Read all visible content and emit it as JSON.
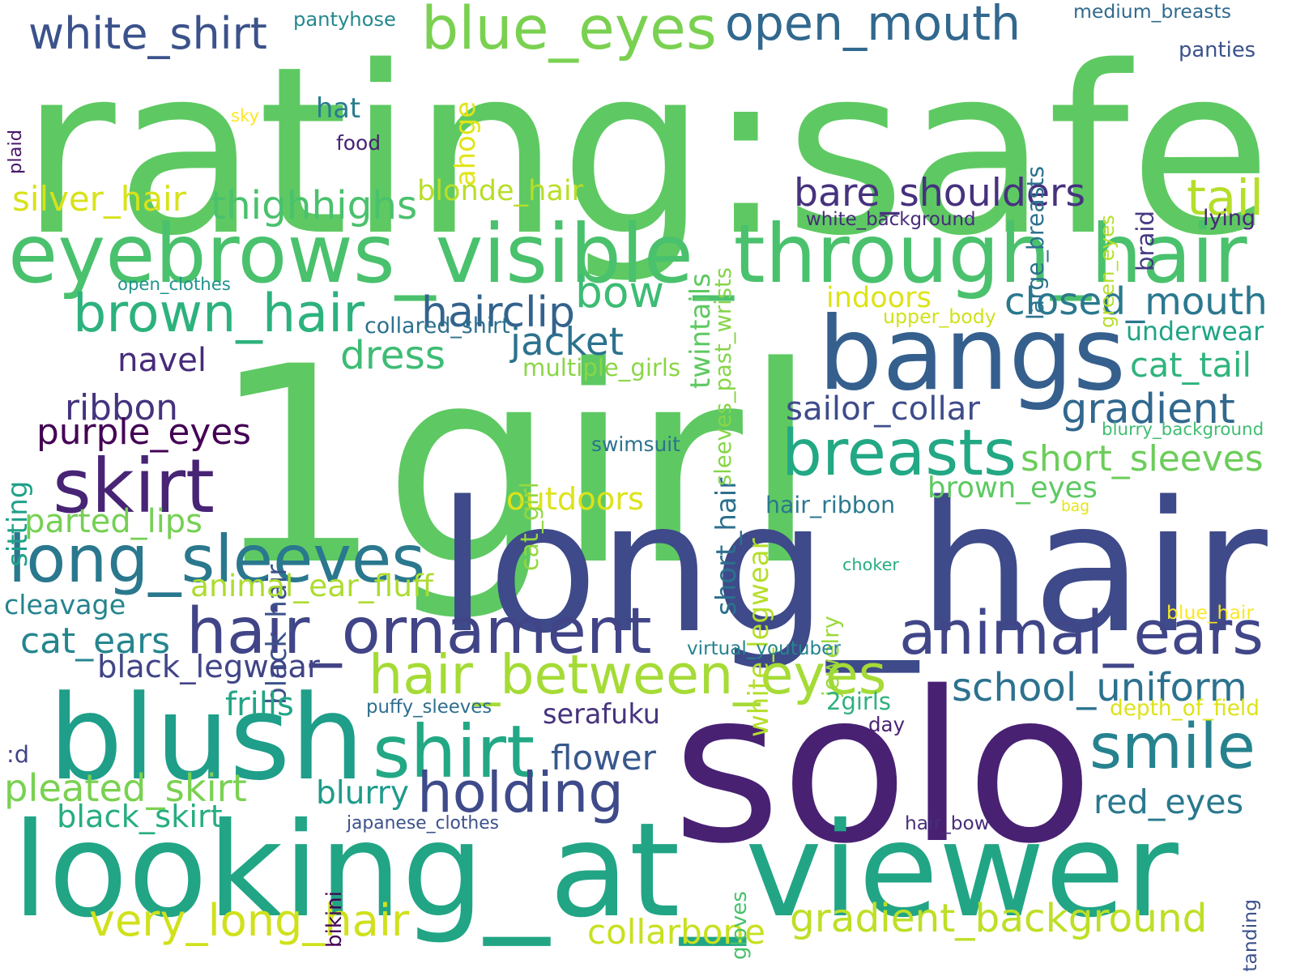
{
  "background": "#ffffff",
  "words": [
    {
      "text": "rating:safe",
      "color": "#5ec962"
    },
    {
      "text": "1girl",
      "color": "#5ec962"
    },
    {
      "text": "long_hair",
      "color": "#3e4a89"
    },
    {
      "text": "solo",
      "color": "#482173"
    },
    {
      "text": "looking_at_viewer",
      "color": "#21a585"
    },
    {
      "text": "blush",
      "color": "#1f9e89"
    },
    {
      "text": "bangs",
      "color": "#355f8d"
    },
    {
      "text": "eyebrows_visible_through_hair",
      "color": "#4ac16d"
    },
    {
      "text": "blue_eyes",
      "color": "#7ad151"
    },
    {
      "text": "open_mouth",
      "color": "#31688e"
    },
    {
      "text": "white_shirt",
      "color": "#3b528b"
    },
    {
      "text": "long_sleeves",
      "color": "#2a788e"
    },
    {
      "text": "hair_ornament",
      "color": "#414487"
    },
    {
      "text": "animal_ears",
      "color": "#404688"
    },
    {
      "text": "breasts",
      "color": "#22a884"
    },
    {
      "text": "skirt",
      "color": "#482475"
    },
    {
      "text": "brown_hair",
      "color": "#2db27d"
    },
    {
      "text": "hair_between_eyes",
      "color": "#a5db36"
    },
    {
      "text": "smile",
      "color": "#26828e"
    },
    {
      "text": "shirt",
      "color": "#22a884"
    },
    {
      "text": "holding",
      "color": "#3e4a89"
    },
    {
      "text": "bow",
      "color": "#3dbc74"
    },
    {
      "text": "thighhighs",
      "color": "#4ac16d"
    },
    {
      "text": "bare_shoulders",
      "color": "#46327e"
    },
    {
      "text": "school_uniform",
      "color": "#2c728e"
    },
    {
      "text": "gradient_background",
      "color": "#bddf26"
    },
    {
      "text": "very_long_hair",
      "color": "#d0e11c"
    },
    {
      "text": "closed_mouth",
      "color": "#2a788e"
    },
    {
      "text": "gradient",
      "color": "#31688e"
    },
    {
      "text": "dress",
      "color": "#3dbc74"
    },
    {
      "text": "jacket",
      "color": "#2c728e"
    },
    {
      "text": "hairclip",
      "color": "#33638d"
    },
    {
      "text": "navel",
      "color": "#472c7a"
    },
    {
      "text": "ribbon",
      "color": "#46337e"
    },
    {
      "text": "purple_eyes",
      "color": "#440154"
    },
    {
      "text": "twintails",
      "color": "#5ec962"
    },
    {
      "text": "sitting",
      "color": "#1fa088"
    },
    {
      "text": "black_hair",
      "color": "#3b528b"
    },
    {
      "text": "short_hair",
      "color": "#2d708e"
    },
    {
      "text": "white_legwear",
      "color": "#b5de2b"
    },
    {
      "text": "tail",
      "color": "#b5de2b"
    },
    {
      "text": "underwear",
      "color": "#20a486"
    },
    {
      "text": "cat_tail",
      "color": "#2fb47c"
    },
    {
      "text": "short_sleeves",
      "color": "#6ccd5a"
    },
    {
      "text": "sailor_collar",
      "color": "#3e4c8a"
    },
    {
      "text": "brown_eyes",
      "color": "#5ec962"
    },
    {
      "text": "outdoors",
      "color": "#dde318"
    },
    {
      "text": "collarbone",
      "color": "#c8e020"
    },
    {
      "text": "red_eyes",
      "color": "#2a788e"
    },
    {
      "text": "flower",
      "color": "#38588c"
    },
    {
      "text": "serafuku",
      "color": "#46337e"
    },
    {
      "text": "cat_ears",
      "color": "#25858e"
    },
    {
      "text": "black_legwear",
      "color": "#414487"
    },
    {
      "text": "pleated_skirt",
      "color": "#7ad151"
    },
    {
      "text": "black_skirt",
      "color": "#27ad81"
    },
    {
      "text": "blurry",
      "color": "#1e9b8a"
    },
    {
      "text": "cleavage",
      "color": "#25848e"
    },
    {
      "text": "parted_lips",
      "color": "#75d054"
    },
    {
      "text": "animal_ear_fluff",
      "color": "#addc30"
    },
    {
      "text": "silver_hair",
      "color": "#d8e219"
    },
    {
      "text": "blonde_hair",
      "color": "#b8de29"
    },
    {
      "text": "hat",
      "color": "#287c8e"
    },
    {
      "text": "food",
      "color": "#482173"
    },
    {
      "text": "sky",
      "color": "#fde725"
    },
    {
      "text": "plaid",
      "color": "#48186a"
    },
    {
      "text": "pantyhose",
      "color": "#23898e"
    },
    {
      "text": "ahoge",
      "color": "#e2e418"
    },
    {
      "text": "sleeves_past_wrists",
      "color": "#86d549"
    },
    {
      "text": "large_breasts",
      "color": "#2c728e"
    },
    {
      "text": "green_eyes",
      "color": "#b5de2b"
    },
    {
      "text": "braid",
      "color": "#443983"
    },
    {
      "text": "medium_breasts",
      "color": "#306a8e"
    },
    {
      "text": "panties",
      "color": "#3b528b"
    },
    {
      "text": "white_background",
      "color": "#472c7a"
    },
    {
      "text": "lying",
      "color": "#482878"
    },
    {
      "text": "indoors",
      "color": "#dde318"
    },
    {
      "text": "upper_body",
      "color": "#d0e11c"
    },
    {
      "text": "open_clothes",
      "color": "#1f948c"
    },
    {
      "text": "collared_shirt",
      "color": "#2d708e"
    },
    {
      "text": "multiple_girls",
      "color": "#8bd646"
    },
    {
      "text": "cat_girl",
      "color": "#95d840"
    },
    {
      "text": "swimsuit",
      "color": "#2c728e"
    },
    {
      "text": "blurry_background",
      "color": "#40bd72"
    },
    {
      "text": "hair_ribbon",
      "color": "#2a788e"
    },
    {
      "text": "bag",
      "color": "#e5e419"
    },
    {
      "text": "jewelry",
      "color": "#9bd93c"
    },
    {
      "text": "choker",
      "color": "#27ad81"
    },
    {
      "text": "blue_hair",
      "color": "#fde725"
    },
    {
      "text": "virtual_youtuber",
      "color": "#25848e"
    },
    {
      "text": "frills",
      "color": "#21a585"
    },
    {
      "text": "puffy_sleeves",
      "color": "#2e6e8e"
    },
    {
      "text": "2girls",
      "color": "#2db27d"
    },
    {
      "text": "depth_of_field",
      "color": "#dde318"
    },
    {
      "text": "day",
      "color": "#482475"
    },
    {
      "text": ":d",
      "color": "#414487"
    },
    {
      "text": "japanese_clothes",
      "color": "#3b528b"
    },
    {
      "text": "bikini",
      "color": "#440154"
    },
    {
      "text": "gloves",
      "color": "#4ac16d"
    },
    {
      "text": "hair_bow",
      "color": "#472d7b"
    },
    {
      "text": "standing",
      "color": "#3b528b"
    }
  ]
}
